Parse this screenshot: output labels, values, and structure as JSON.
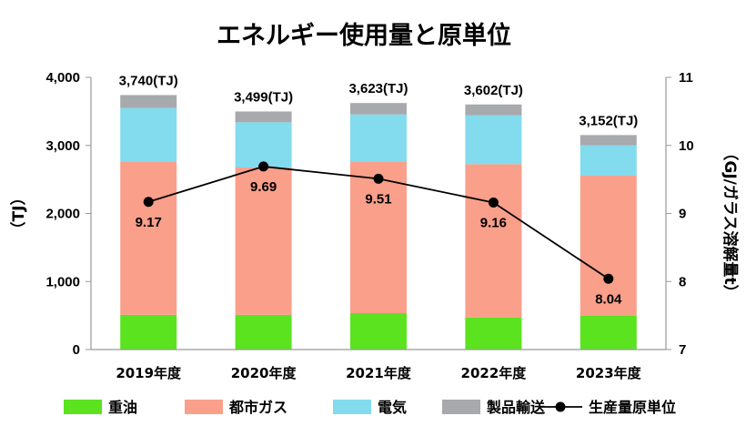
{
  "chart_data": {
    "type": "bar",
    "stacked": true,
    "title": "エネルギー使用量と原単位",
    "categories": [
      "2019年度",
      "2020年度",
      "2021年度",
      "2022年度",
      "2023年度"
    ],
    "ylabel_left": "（TJ）",
    "ylabel_right": "（GJ/ガラス溶解量t）",
    "ylim_left": [
      0,
      4000
    ],
    "yticks_left": [
      "0",
      "1,000",
      "2,000",
      "3,000",
      "4,000"
    ],
    "ylim_right": [
      7,
      11
    ],
    "yticks_right": [
      "7",
      "8",
      "9",
      "10",
      "11"
    ],
    "series": [
      {
        "name": "重油",
        "color": "#5BE31F",
        "values": [
          510,
          510,
          535,
          470,
          500
        ]
      },
      {
        "name": "都市ガス",
        "color": "#F99F8A",
        "values": [
          2255,
          2165,
          2230,
          2255,
          2055
        ]
      },
      {
        "name": "電気",
        "color": "#83DBEE",
        "values": [
          785,
          665,
          690,
          720,
          445
        ]
      },
      {
        "name": "製品輸送",
        "color": "#A8A9AD",
        "values": [
          190,
          159,
          168,
          157,
          152
        ]
      }
    ],
    "totals": [
      "3,740(TJ)",
      "3,499(TJ)",
      "3,623(TJ)",
      "3,602(TJ)",
      "3,152(TJ)"
    ],
    "line_series": {
      "name": "生産量原単位",
      "axis": "right",
      "color": "#000000",
      "values": [
        9.17,
        9.69,
        9.51,
        9.16,
        8.04
      ],
      "labels": [
        "9.17",
        "9.69",
        "9.51",
        "9.16",
        "8.04"
      ]
    },
    "legend_position": "bottom",
    "grid": false
  }
}
